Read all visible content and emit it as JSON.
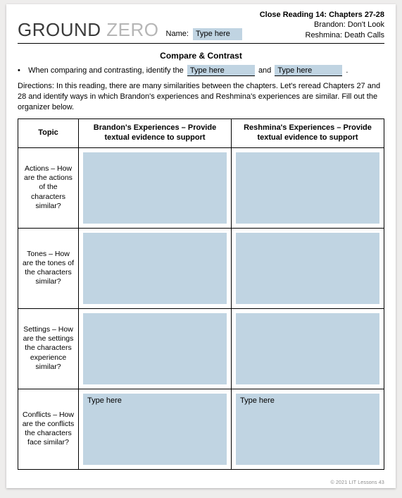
{
  "header": {
    "logo_word1": "GROUND",
    "logo_word2": "ZERO",
    "name_label": "Name:",
    "name_value": "Type here",
    "right_title": "Close Reading 14: Chapters 27-28",
    "right_line1": "Brandon: Don't Look",
    "right_line2": "Reshmina: Death Calls"
  },
  "section_title": "Compare & Contrast",
  "bullet": {
    "lead": "When comparing and contrasting, identify the",
    "blank1": "Type here",
    "mid": "and",
    "blank2": "Type here",
    "tail": "."
  },
  "directions": "Directions: In this reading, there are many similarities between the chapters. Let's reread Chapters 27 and 28 and identify ways in which Brandon's experiences and Reshmina's experiences are similar. Fill out the organizer below.",
  "table": {
    "head_topic": "Topic",
    "head_brandon": "Brandon's Experiences – Provide textual evidence to support",
    "head_reshmina": "Reshmina's Experiences – Provide textual evidence to support",
    "rows": [
      {
        "topic": "Actions – How are the actions of the characters similar?",
        "brandon": "",
        "reshmina": ""
      },
      {
        "topic": "Tones – How are the tones of the characters similar?",
        "brandon": "",
        "reshmina": ""
      },
      {
        "topic": "Settings – How are the settings the characters experience similar?",
        "brandon": "",
        "reshmina": ""
      },
      {
        "topic": "Conflicts – How are the conflicts the characters face similar?",
        "brandon": "Type here",
        "reshmina": "Type here"
      }
    ]
  },
  "footer": "© 2021 LIT Lessons  43"
}
